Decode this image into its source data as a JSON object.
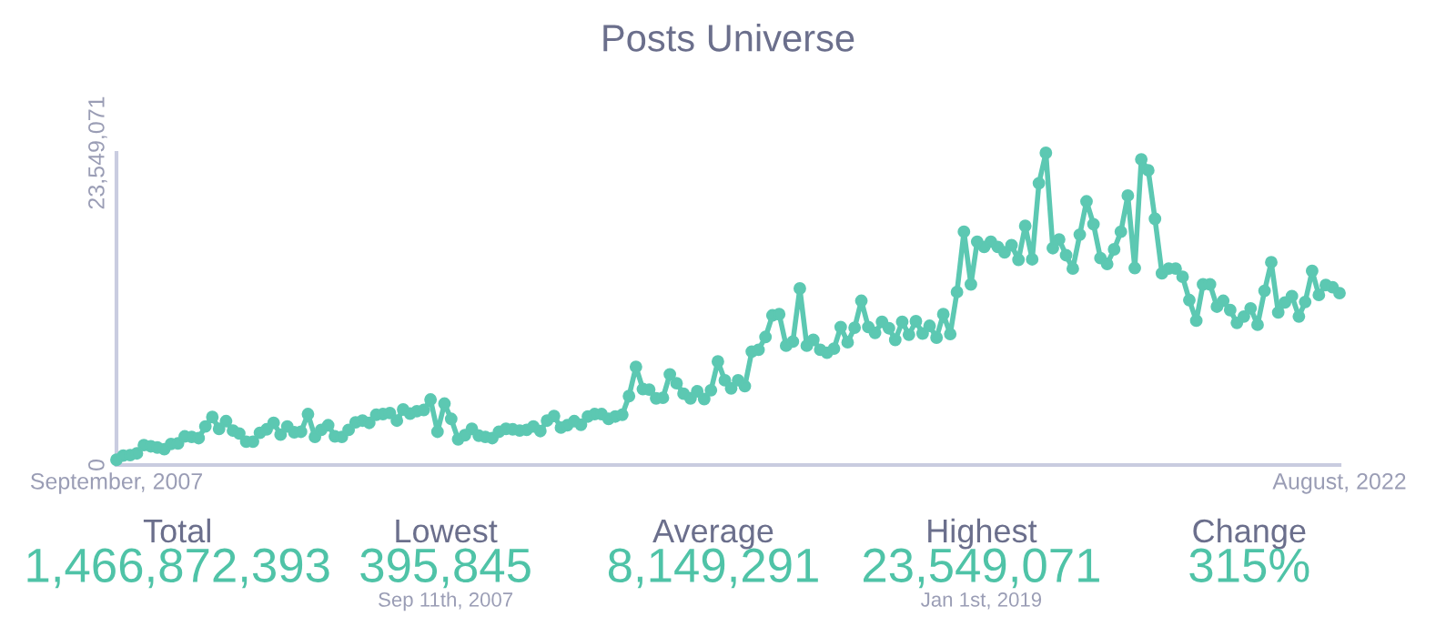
{
  "chart_data": [
    {
      "type": "line",
      "title": "Posts Universe",
      "x": [
        "2007-09",
        "2007-10",
        "2007-11",
        "2007-12",
        "2008-01",
        "2008-02",
        "2008-03",
        "2008-04",
        "2008-05",
        "2008-06",
        "2008-07",
        "2008-08",
        "2008-09",
        "2008-10",
        "2008-11",
        "2008-12",
        "2009-01",
        "2009-02",
        "2009-03",
        "2009-04",
        "2009-05",
        "2009-06",
        "2009-07",
        "2009-08",
        "2009-09",
        "2009-10",
        "2009-11",
        "2009-12",
        "2010-01",
        "2010-02",
        "2010-03",
        "2010-04",
        "2010-05",
        "2010-06",
        "2010-07",
        "2010-08",
        "2010-09",
        "2010-10",
        "2010-11",
        "2010-12",
        "2011-01",
        "2011-02",
        "2011-03",
        "2011-04",
        "2011-05",
        "2011-06",
        "2011-07",
        "2011-08",
        "2011-09",
        "2011-10",
        "2011-11",
        "2011-12",
        "2012-01",
        "2012-02",
        "2012-03",
        "2012-04",
        "2012-05",
        "2012-06",
        "2012-07",
        "2012-08",
        "2012-09",
        "2012-10",
        "2012-11",
        "2012-12",
        "2013-01",
        "2013-02",
        "2013-03",
        "2013-04",
        "2013-05",
        "2013-06",
        "2013-07",
        "2013-08",
        "2013-09",
        "2013-10",
        "2013-11",
        "2013-12",
        "2014-01",
        "2014-02",
        "2014-03",
        "2014-04",
        "2014-05",
        "2014-06",
        "2014-07",
        "2014-08",
        "2014-09",
        "2014-10",
        "2014-11",
        "2014-12",
        "2015-01",
        "2015-02",
        "2015-03",
        "2015-04",
        "2015-05",
        "2015-06",
        "2015-07",
        "2015-08",
        "2015-09",
        "2015-10",
        "2015-11",
        "2015-12",
        "2016-01",
        "2016-02",
        "2016-03",
        "2016-04",
        "2016-05",
        "2016-06",
        "2016-07",
        "2016-08",
        "2016-09",
        "2016-10",
        "2016-11",
        "2016-12",
        "2017-01",
        "2017-02",
        "2017-03",
        "2017-04",
        "2017-05",
        "2017-06",
        "2017-07",
        "2017-08",
        "2017-09",
        "2017-10",
        "2017-11",
        "2017-12",
        "2018-01",
        "2018-02",
        "2018-03",
        "2018-04",
        "2018-05",
        "2018-06",
        "2018-07",
        "2018-08",
        "2018-09",
        "2018-10",
        "2018-11",
        "2018-12",
        "2019-01",
        "2019-02",
        "2019-03",
        "2019-04",
        "2019-05",
        "2019-06",
        "2019-07",
        "2019-08",
        "2019-09",
        "2019-10",
        "2019-11",
        "2019-12",
        "2020-01",
        "2020-02",
        "2020-03",
        "2020-04",
        "2020-05",
        "2020-06",
        "2020-07",
        "2020-08",
        "2020-09",
        "2020-10",
        "2020-11",
        "2020-12",
        "2021-01",
        "2021-02",
        "2021-03",
        "2021-04",
        "2021-05",
        "2021-06",
        "2021-07",
        "2021-08",
        "2021-09",
        "2021-10",
        "2021-11",
        "2021-12",
        "2022-01",
        "2022-02",
        "2022-03",
        "2022-04",
        "2022-05",
        "2022-06",
        "2022-07",
        "2022-08"
      ],
      "series": [
        {
          "color": "#5cc8b2",
          "values": [
            395845,
            710000,
            750000,
            880000,
            1500000,
            1410000,
            1320000,
            1190000,
            1590000,
            1630000,
            2160000,
            2120000,
            2030000,
            2910000,
            3620000,
            2730000,
            3310000,
            2600000,
            2380000,
            1760000,
            1760000,
            2430000,
            2690000,
            3180000,
            2290000,
            2910000,
            2470000,
            2510000,
            3840000,
            2120000,
            2650000,
            3000000,
            2160000,
            2120000,
            2650000,
            3220000,
            3350000,
            3180000,
            3790000,
            3840000,
            3920000,
            3350000,
            4190000,
            3880000,
            4060000,
            4150000,
            4940000,
            2510000,
            4630000,
            3480000,
            1940000,
            2250000,
            2730000,
            2210000,
            2120000,
            2030000,
            2510000,
            2730000,
            2690000,
            2600000,
            2650000,
            2910000,
            2560000,
            3350000,
            3700000,
            2820000,
            3000000,
            3310000,
            3040000,
            3660000,
            3840000,
            3840000,
            3480000,
            3660000,
            3790000,
            5200000,
            7410000,
            5730000,
            5690000,
            5030000,
            5070000,
            6840000,
            6170000,
            5380000,
            5030000,
            5560000,
            4980000,
            5640000,
            7810000,
            6390000,
            5780000,
            6390000,
            5950000,
            8560000,
            8690000,
            9660000,
            11290000,
            11380000,
            9000000,
            9310000,
            13320000,
            9000000,
            9440000,
            8690000,
            8470000,
            8780000,
            10410000,
            9260000,
            10360000,
            12390000,
            10410000,
            9970000,
            10800000,
            10320000,
            9440000,
            10800000,
            9830000,
            10850000,
            9920000,
            10500000,
            9610000,
            11380000,
            9880000,
            13050000,
            17600000,
            13630000,
            16850000,
            16450000,
            16850000,
            16450000,
            16050000,
            16580000,
            15480000,
            18040000,
            15520000,
            21260000,
            23549071,
            16360000,
            17020000,
            15830000,
            14820000,
            17380000,
            19890000,
            18170000,
            15610000,
            15170000,
            16270000,
            17600000,
            20330000,
            14860000,
            23060000,
            22230000,
            18570000,
            14460000,
            14820000,
            14820000,
            14200000,
            12440000,
            10890000,
            13630000,
            13630000,
            11950000,
            12390000,
            11690000,
            10720000,
            11200000,
            11820000,
            10580000,
            13140000,
            15300000,
            11510000,
            12260000,
            12740000,
            11200000,
            12300000,
            14640000,
            12830000,
            13580000,
            13410000,
            12970000
          ]
        }
      ],
      "xlim": [
        "2007-09",
        "2022-08"
      ],
      "xticks": [
        {
          "value": "2007-09",
          "label": "September, 2007"
        },
        {
          "value": "2022-08",
          "label": "August, 2022"
        }
      ],
      "ylim": [
        0,
        23549071
      ],
      "yticks": [
        0,
        {
          "value": 23549071,
          "label": "23,549,071"
        }
      ],
      "marker": "circle",
      "line_style": "solid",
      "grid": false
    },
    {
      "type": "other",
      "categories": [
        "Total",
        "Lowest",
        "Average",
        "Highest",
        "Change"
      ],
      "value_labels": [
        "1,466,872,393",
        "395,845",
        "8,149,291",
        "23,549,071",
        "315%"
      ],
      "color": "#4fc3a7",
      "annotations": [
        {
          "text": "Sep 11th, 2007",
          "x": "Lowest"
        },
        {
          "text": "Jan 1st, 2019",
          "x": "Highest"
        }
      ]
    }
  ]
}
